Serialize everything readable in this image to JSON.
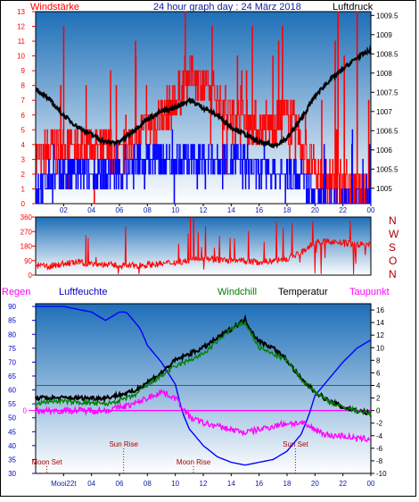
{
  "header": {
    "left_label": "Windstärke",
    "title": "24 hour graph day : 24 März 2018",
    "right_label": "Luftdruck"
  },
  "colors": {
    "panel_top": "#1e6fb8",
    "panel_bottom": "#ffffff",
    "red": "#ff0000",
    "blue": "#0000ff",
    "black": "#000000",
    "green": "#008000",
    "magenta": "#ff00ff",
    "darkred": "#aa0000"
  },
  "chart_data": [
    {
      "type": "line",
      "name": "wind-pressure",
      "x_ticks": [
        "02",
        "04",
        "06",
        "08",
        "10",
        "12",
        "14",
        "16",
        "18",
        "20",
        "22",
        "00"
      ],
      "left_axis": {
        "label": "Windstärke",
        "ylim": [
          0,
          13
        ],
        "ticks": [
          0,
          1,
          2,
          3,
          4,
          5,
          6,
          7,
          8,
          9,
          10,
          11,
          12,
          13
        ]
      },
      "right_axis": {
        "label": "Luftdruck",
        "ylim": [
          1004.6,
          1009.6
        ],
        "ticks": [
          "1005",
          "1005.5",
          "1006",
          "1006.5",
          "1007",
          "1007.5",
          "1008",
          "1008.5",
          "1009",
          "1009.5"
        ]
      },
      "series": [
        {
          "name": "gust",
          "color": "red",
          "hours": [
            0,
            2,
            4,
            6,
            8,
            10,
            11,
            12,
            13,
            14,
            16,
            18,
            19,
            20,
            22,
            24
          ],
          "values": [
            3,
            4,
            4,
            3,
            5,
            7,
            9,
            8,
            7,
            6,
            5,
            6,
            4,
            2,
            1,
            1
          ]
        },
        {
          "name": "wind",
          "color": "blue",
          "hours": [
            0,
            2,
            4,
            6,
            8,
            10,
            12,
            14,
            16,
            18,
            19,
            20,
            22,
            24
          ],
          "values": [
            1,
            2,
            2,
            2,
            3,
            3,
            3,
            3,
            2,
            2,
            2,
            0,
            0,
            0
          ]
        },
        {
          "name": "pressure",
          "color": "black",
          "hours": [
            0,
            1,
            2,
            3,
            4,
            5,
            6,
            7,
            8,
            9,
            10,
            11,
            12,
            13,
            14,
            15,
            16,
            17,
            18,
            19,
            20,
            21,
            22,
            23,
            24
          ],
          "values": [
            1007.6,
            1007.3,
            1006.9,
            1006.6,
            1006.4,
            1006.2,
            1006.2,
            1006.5,
            1006.8,
            1007.0,
            1007.1,
            1007.3,
            1007.1,
            1006.9,
            1006.6,
            1006.4,
            1006.2,
            1006.1,
            1006.3,
            1006.8,
            1007.4,
            1007.8,
            1008.1,
            1008.4,
            1008.6
          ]
        }
      ]
    },
    {
      "type": "line",
      "name": "wind-direction",
      "y_axis": {
        "ylim": [
          0,
          360
        ],
        "ticks": [
          0,
          90,
          180,
          270,
          360
        ]
      },
      "compass": [
        "N",
        "W",
        "S",
        "O",
        "N"
      ],
      "series": [
        {
          "name": "direction",
          "color": "red",
          "hours": [
            0,
            1,
            2,
            3,
            4,
            5,
            6,
            7,
            8,
            9,
            10,
            11,
            12,
            13,
            14,
            15,
            16,
            17,
            18,
            19,
            20,
            21,
            22,
            23,
            24
          ],
          "values": [
            60,
            55,
            70,
            80,
            70,
            65,
            60,
            60,
            65,
            70,
            80,
            90,
            110,
            95,
            90,
            85,
            80,
            90,
            100,
            140,
            200,
            210,
            200,
            190,
            190
          ]
        }
      ]
    },
    {
      "type": "line",
      "name": "humidity-temperature",
      "legend": [
        "Regen",
        "Luftfeuchte",
        "Windchill",
        "Temperatur",
        "Taupunkt"
      ],
      "left_axis": {
        "ylim": [
          30,
          91
        ],
        "ticks": [
          30,
          35,
          40,
          45,
          50,
          55,
          60,
          65,
          70,
          75,
          80,
          85,
          90
        ]
      },
      "right_axis": {
        "ylim": [
          -10,
          17
        ],
        "ticks": [
          -10,
          -8,
          -6,
          -4,
          -2,
          0,
          2,
          4,
          6,
          8,
          10,
          12,
          14,
          16
        ]
      },
      "zero_label": "0",
      "x_ticks": [
        "02",
        "04",
        "06",
        "08",
        "10",
        "12",
        "14",
        "16",
        "18",
        "20",
        "22",
        "00"
      ],
      "events": [
        {
          "label": "Moon Set",
          "hour": 0.8,
          "row": "low"
        },
        {
          "label": "Sun Rise",
          "hour": 6.3,
          "row": "high"
        },
        {
          "label": "Moon Rise",
          "hour": 11.3,
          "row": "low"
        },
        {
          "label": "Sun Set",
          "hour": 18.6,
          "row": "high"
        }
      ],
      "first_x_label": "Mooi22t",
      "series": [
        {
          "name": "Luftfeuchte",
          "color": "blue",
          "axis": "left",
          "hours": [
            0,
            1,
            2,
            3,
            4,
            5,
            6,
            6.5,
            7,
            7.5,
            8,
            9,
            10,
            10.5,
            11,
            12,
            13,
            14,
            15,
            16,
            17,
            18,
            19,
            19.5,
            20,
            21,
            22,
            23,
            24
          ],
          "values": [
            90,
            90,
            90,
            89,
            88,
            85,
            88,
            88,
            85,
            82,
            76,
            70,
            62,
            52,
            46,
            40,
            36,
            34,
            33,
            34,
            35,
            38,
            44,
            50,
            58,
            64,
            70,
            75,
            78
          ]
        },
        {
          "name": "Temperatur",
          "color": "black",
          "axis": "right",
          "hours": [
            0,
            1,
            2,
            3,
            4,
            5,
            6,
            7,
            8,
            9,
            10,
            11,
            12,
            13,
            14,
            15,
            15.5,
            16,
            17,
            18,
            19,
            20,
            21,
            22,
            23,
            24
          ],
          "values": [
            2,
            2,
            2,
            2,
            2,
            2,
            2.5,
            3,
            4.5,
            6,
            8,
            9,
            10,
            11.5,
            13,
            14.5,
            12.5,
            11,
            10,
            8,
            5,
            3,
            1.5,
            0.5,
            0,
            -0.5
          ]
        },
        {
          "name": "Windchill",
          "color": "green",
          "axis": "right",
          "hours": [
            0,
            1,
            2,
            3,
            4,
            5,
            6,
            7,
            8,
            9,
            10,
            11,
            12,
            13,
            14,
            15,
            16,
            17,
            18,
            19,
            20,
            21,
            22,
            23,
            24
          ],
          "values": [
            1,
            1.5,
            1.5,
            1.3,
            1.2,
            1,
            1.6,
            2.3,
            4,
            5.5,
            7,
            8,
            9,
            11,
            13,
            14,
            10,
            9,
            8,
            5,
            3,
            1.5,
            0.5,
            0,
            -0.5
          ]
        },
        {
          "name": "Taupunkt",
          "color": "magenta",
          "axis": "right",
          "hours": [
            0,
            1,
            2,
            3,
            4,
            5,
            6,
            7,
            8,
            9,
            10,
            11,
            12,
            13,
            14,
            15,
            16,
            17,
            18,
            19,
            20,
            21,
            22,
            23,
            24
          ],
          "values": [
            0,
            0,
            0,
            0,
            0,
            0,
            0.5,
            1,
            2,
            3,
            2,
            -1,
            -2,
            -2.5,
            -3,
            -3.5,
            -3,
            -2.5,
            -2,
            -2,
            -3,
            -4,
            -4,
            -4.5,
            -4.5
          ]
        }
      ]
    }
  ]
}
